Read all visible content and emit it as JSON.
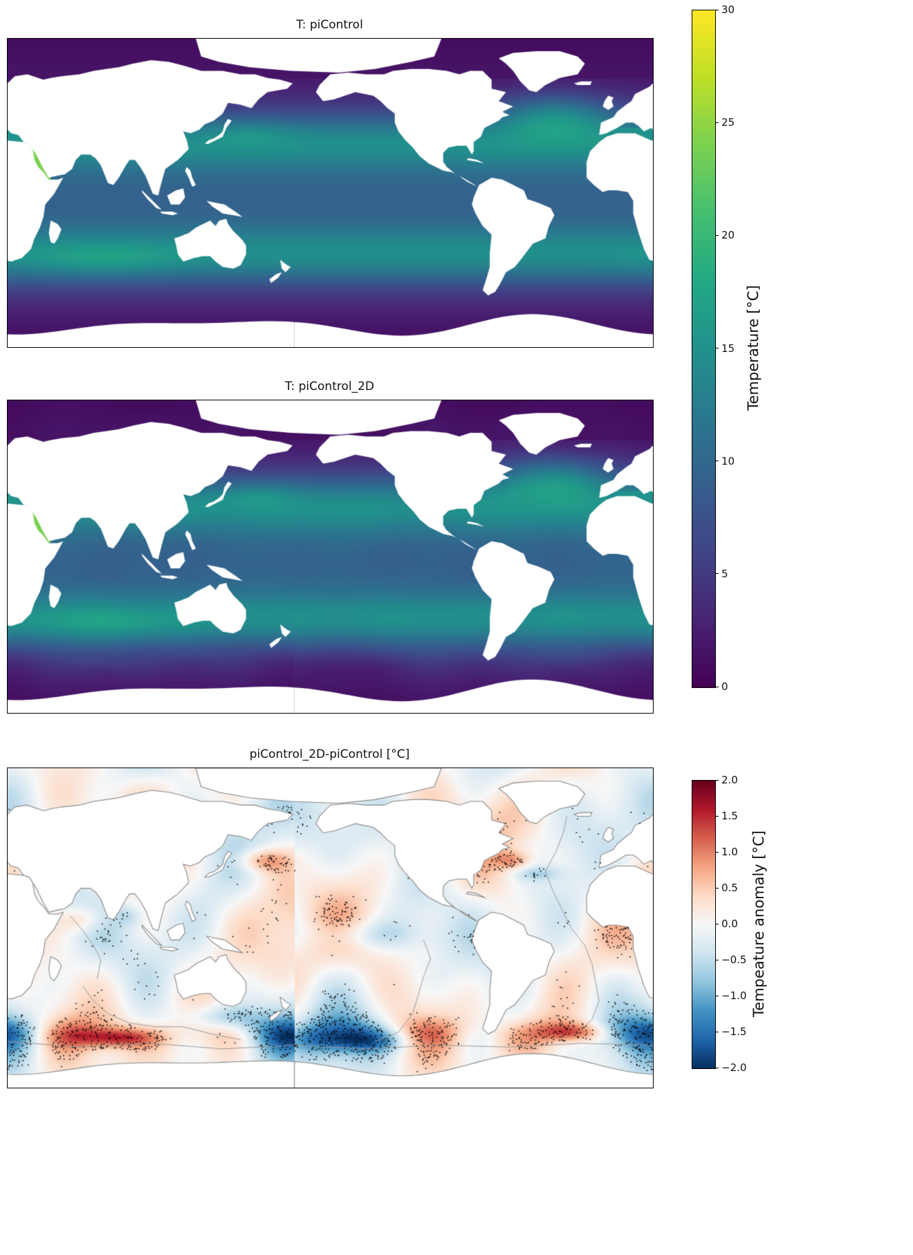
{
  "chart_data": [
    {
      "type": "heatmap",
      "title": "T: piControl",
      "colormap": "viridis",
      "units": "°C",
      "value_range": [
        0,
        30
      ],
      "projection": "global longitude-latitude ocean map, land masked white, left edge near 20°E",
      "colorbar": {
        "label": "Temperature [°C]",
        "ticks": [
          0,
          5,
          10,
          15,
          20,
          25,
          30
        ],
        "tick_labels": [
          "0",
          "5",
          "10",
          "15",
          "20",
          "25",
          "30"
        ],
        "range": [
          0,
          30
        ],
        "orientation": "vertical",
        "shared": "panels 1 and 2"
      },
      "features": [
        "polar oceans near 0°C (dark purple)",
        "subtropical gyres ~14-16°C (teal)",
        "equatorial oceans ~8-10°C (blue)",
        "warm North Atlantic drift ~18-21°C (green)",
        "Red Sea hotspot ~24°C (light green)"
      ]
    },
    {
      "type": "heatmap",
      "title": "T: piControl_2D",
      "colormap": "viridis",
      "units": "°C",
      "value_range": [
        0,
        30
      ],
      "projection": "global longitude-latitude ocean map, land masked white, left edge near 20°E",
      "colorbar": {
        "label": "Temperature [°C]",
        "ticks": [
          0,
          5,
          10,
          15,
          20,
          25,
          30
        ],
        "tick_labels": [
          "0",
          "5",
          "10",
          "15",
          "20",
          "25",
          "30"
        ],
        "range": [
          0,
          30
        ],
        "orientation": "vertical",
        "shared": "panels 1 and 2"
      },
      "features": [
        "pattern very similar to piControl with slightly smoother field",
        "warm North Atlantic, teal southern subtropical band, cold polar oceans"
      ]
    },
    {
      "type": "heatmap",
      "title": "piControl_2D-piControl [°C]",
      "colormap": "RdBu_r",
      "units": "°C",
      "value_range": [
        -2,
        2
      ],
      "projection": "global longitude-latitude ocean map, land masked white, left edge near 20°E",
      "colorbar": {
        "label": "Tempeature anomaly [°C]",
        "ticks": [
          -2,
          -1.5,
          -1,
          -0.5,
          0,
          0.5,
          1,
          1.5,
          2
        ],
        "tick_labels": [
          "−2.0",
          "−1.5",
          "−1.0",
          "−0.5",
          "0.0",
          "0.5",
          "1.0",
          "1.5",
          "2.0"
        ],
        "range": [
          -2,
          2
        ],
        "orientation": "vertical"
      },
      "overlays": [
        "gray bathymetry / contour lines over the ocean",
        "black stippling dots marking regions of large anomaly"
      ],
      "features": [
        "mostly pale anomalies near 0°C",
        "warm (red) patches in Kuroshio and Gulf Stream regions",
        "strong red streaks in the Southern Ocean around 55°S",
        "deep blue patches in the South Pacific sector and equatorial Pacific"
      ]
    }
  ]
}
